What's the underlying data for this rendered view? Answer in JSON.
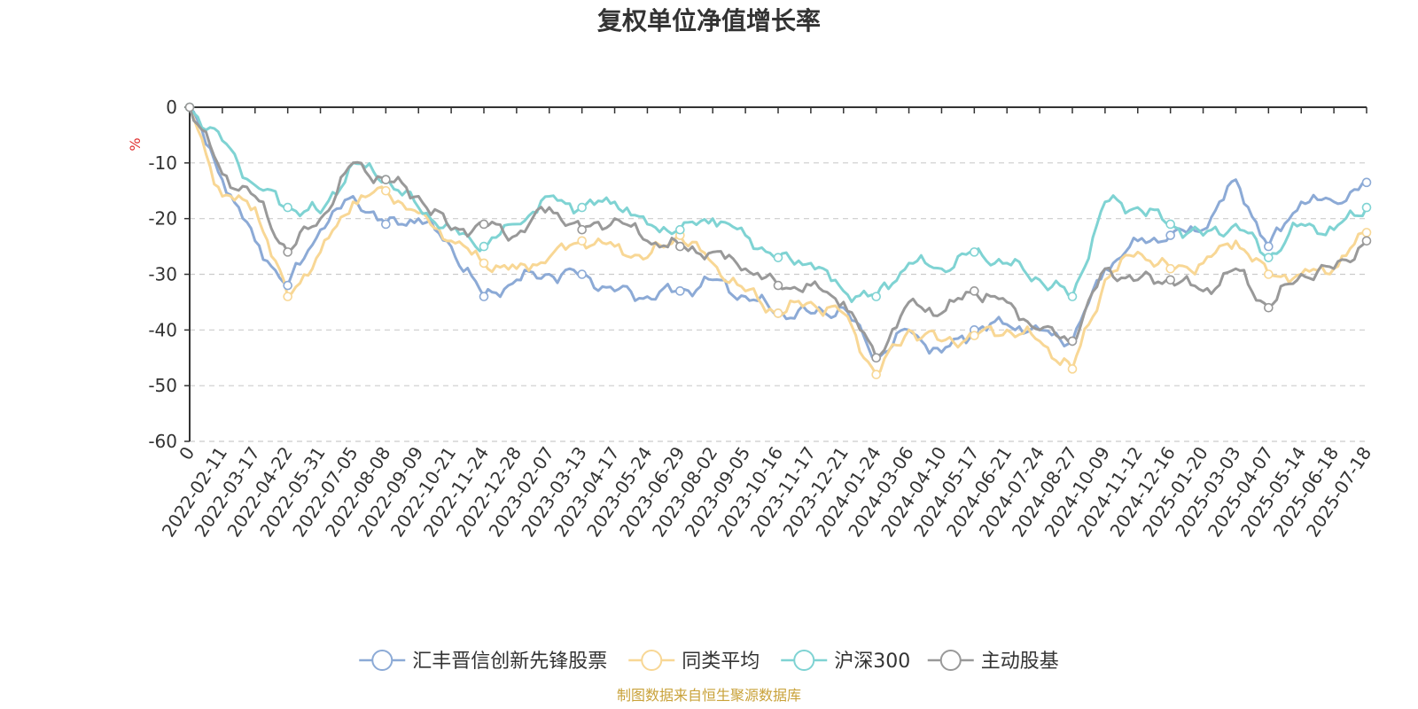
{
  "colors": {
    "fund": "#8caad6",
    "peer": "#f8d795",
    "csi300": "#7fd3d3",
    "active": "#999999",
    "source": "#c9a23a",
    "unit": "#e03030"
  },
  "chart_data": {
    "type": "line",
    "title": "复权单位净值增长率",
    "ylabel": "%",
    "xlabel": "",
    "ylim": [
      -60,
      0
    ],
    "yticks": [
      0,
      -10,
      -20,
      -30,
      -40,
      -50,
      -60
    ],
    "grid": true,
    "legend_position": "bottom-center",
    "categories": [
      "0",
      "2022-02-11",
      "2022-03-17",
      "2022-04-22",
      "2022-05-31",
      "2022-07-05",
      "2022-08-08",
      "2022-09-09",
      "2022-10-21",
      "2022-11-24",
      "2022-12-28",
      "2023-02-07",
      "2023-03-13",
      "2023-04-17",
      "2023-05-24",
      "2023-06-29",
      "2023-08-02",
      "2023-09-05",
      "2023-10-16",
      "2023-11-17",
      "2023-12-21",
      "2024-01-24",
      "2024-03-06",
      "2024-04-10",
      "2024-05-17",
      "2024-06-21",
      "2024-07-24",
      "2024-08-27",
      "2024-10-09",
      "2024-11-12",
      "2024-12-16",
      "2025-01-20",
      "2025-03-03",
      "2025-04-07",
      "2025-05-14",
      "2025-06-18",
      "2025-07-18"
    ],
    "series": [
      {
        "name": "汇丰晋信创新先锋股票",
        "color_key": "fund",
        "values": [
          0,
          -13,
          -24,
          -32,
          -22,
          -16,
          -21,
          -20,
          -25,
          -34,
          -31,
          -30,
          -30,
          -33,
          -34,
          -33,
          -31,
          -34,
          -37,
          -37,
          -36,
          -45,
          -40,
          -44,
          -40,
          -39,
          -40,
          -42,
          -29,
          -24,
          -23,
          -22,
          -13,
          -25,
          -17,
          -17,
          -13.5
        ]
      },
      {
        "name": "同类平均",
        "color_key": "peer",
        "values": [
          0,
          -16,
          -18,
          -34,
          -26,
          -17,
          -15,
          -19,
          -24,
          -28,
          -29,
          -27,
          -24,
          -25,
          -27,
          -23,
          -28,
          -33,
          -37,
          -35,
          -37,
          -48,
          -40,
          -42,
          -41,
          -40,
          -42,
          -47,
          -31,
          -26,
          -29,
          -28,
          -24,
          -30,
          -30,
          -29,
          -22.5
        ]
      },
      {
        "name": "沪深300",
        "color_key": "csi300",
        "values": [
          0,
          -6,
          -14,
          -18,
          -19,
          -10,
          -13,
          -18,
          -22,
          -25,
          -21,
          -16,
          -18,
          -17,
          -21,
          -22,
          -20,
          -23,
          -27,
          -28,
          -33,
          -34,
          -28,
          -29,
          -26,
          -28,
          -31,
          -34,
          -17,
          -18,
          -21,
          -23,
          -21,
          -27,
          -21,
          -22,
          -18
        ]
      },
      {
        "name": "主动股基",
        "color_key": "active",
        "values": [
          0,
          -12,
          -16,
          -26,
          -20,
          -10,
          -13,
          -16,
          -22,
          -21,
          -23,
          -18,
          -22,
          -20,
          -24,
          -25,
          -26,
          -29,
          -32,
          -32,
          -35,
          -45,
          -35,
          -37,
          -33,
          -35,
          -40,
          -42,
          -29,
          -31,
          -31,
          -33,
          -29,
          -36,
          -30,
          -29,
          -24
        ]
      }
    ]
  },
  "source": "制图数据来自恒生聚源数据库"
}
